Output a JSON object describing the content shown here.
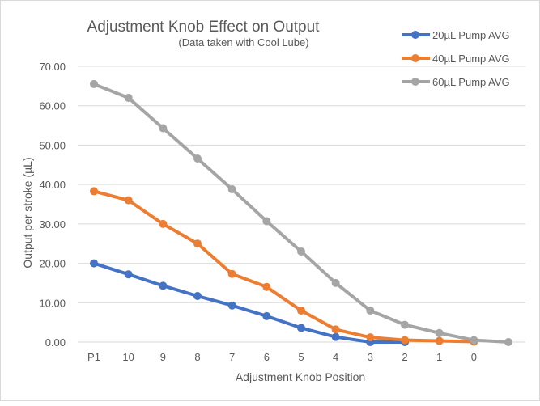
{
  "chart_data": {
    "type": "line",
    "title": "Adjustment Knob Effect on Output",
    "subtitle": "(Data taken with Cool Lube)",
    "xlabel": "Adjustment Knob Position",
    "ylabel": "Output per stroke (µL)",
    "ylim": [
      0,
      70
    ],
    "yticks": [
      "0.00",
      "10.00",
      "20.00",
      "30.00",
      "40.00",
      "50.00",
      "60.00",
      "70.00"
    ],
    "grid": true,
    "legend_position": "top-right",
    "categories": [
      "P1",
      "10",
      "9",
      "8",
      "7",
      "6",
      "5",
      "4",
      "3",
      "2",
      "1",
      "0",
      ""
    ],
    "series": [
      {
        "name": "20µL Pump AVG",
        "color": "#4472c4",
        "values": [
          20.0,
          17.2,
          14.3,
          11.7,
          9.3,
          6.6,
          3.6,
          1.3,
          0.0,
          0.0,
          null,
          null,
          null
        ]
      },
      {
        "name": "40µL Pump AVG",
        "color": "#ed7d31",
        "values": [
          38.3,
          36.0,
          30.0,
          25.0,
          17.3,
          14.0,
          8.0,
          3.2,
          1.2,
          0.5,
          0.3,
          0.1,
          null
        ]
      },
      {
        "name": "60µL Pump AVG",
        "color": "#a5a5a5",
        "values": [
          65.5,
          62.0,
          54.3,
          46.6,
          38.8,
          30.7,
          23.0,
          15.0,
          8.0,
          4.4,
          2.3,
          0.5,
          0.0
        ]
      }
    ]
  }
}
